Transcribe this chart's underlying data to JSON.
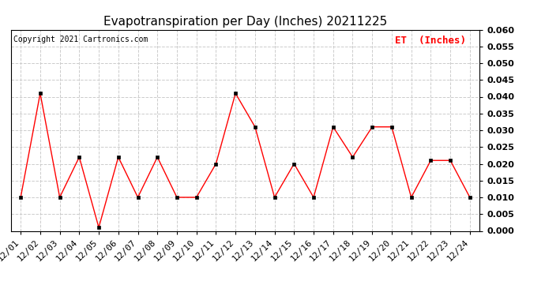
{
  "title": "Evapotranspiration per Day (Inches) 20211225",
  "copyright": "Copyright 2021 Cartronics.com",
  "legend_label": "ET  (Inches)",
  "legend_color": "#ff0000",
  "line_color": "#ff0000",
  "marker_color": "#000000",
  "background_color": "#ffffff",
  "labels": [
    "12/01",
    "12/02",
    "12/03",
    "12/04",
    "12/05",
    "12/06",
    "12/07",
    "12/08",
    "12/09",
    "12/10",
    "12/11",
    "12/12",
    "12/13",
    "12/14",
    "12/15",
    "12/16",
    "12/17",
    "12/18",
    "12/19",
    "12/20",
    "12/21",
    "12/22",
    "12/23",
    "12/24"
  ],
  "values": [
    0.01,
    0.041,
    0.01,
    0.022,
    0.001,
    0.022,
    0.01,
    0.022,
    0.01,
    0.01,
    0.02,
    0.041,
    0.031,
    0.01,
    0.02,
    0.01,
    0.031,
    0.022,
    0.031,
    0.031,
    0.01,
    0.021,
    0.021,
    0.01
  ],
  "ylim": [
    0.0,
    0.06
  ],
  "yticks": [
    0.0,
    0.005,
    0.01,
    0.015,
    0.02,
    0.025,
    0.03,
    0.035,
    0.04,
    0.045,
    0.05,
    0.055,
    0.06
  ],
  "grid_color": "#cccccc",
  "grid_style": "--",
  "title_fontsize": 11,
  "copyright_fontsize": 7,
  "legend_fontsize": 9,
  "tick_fontsize": 8,
  "ytick_fontsize": 8
}
